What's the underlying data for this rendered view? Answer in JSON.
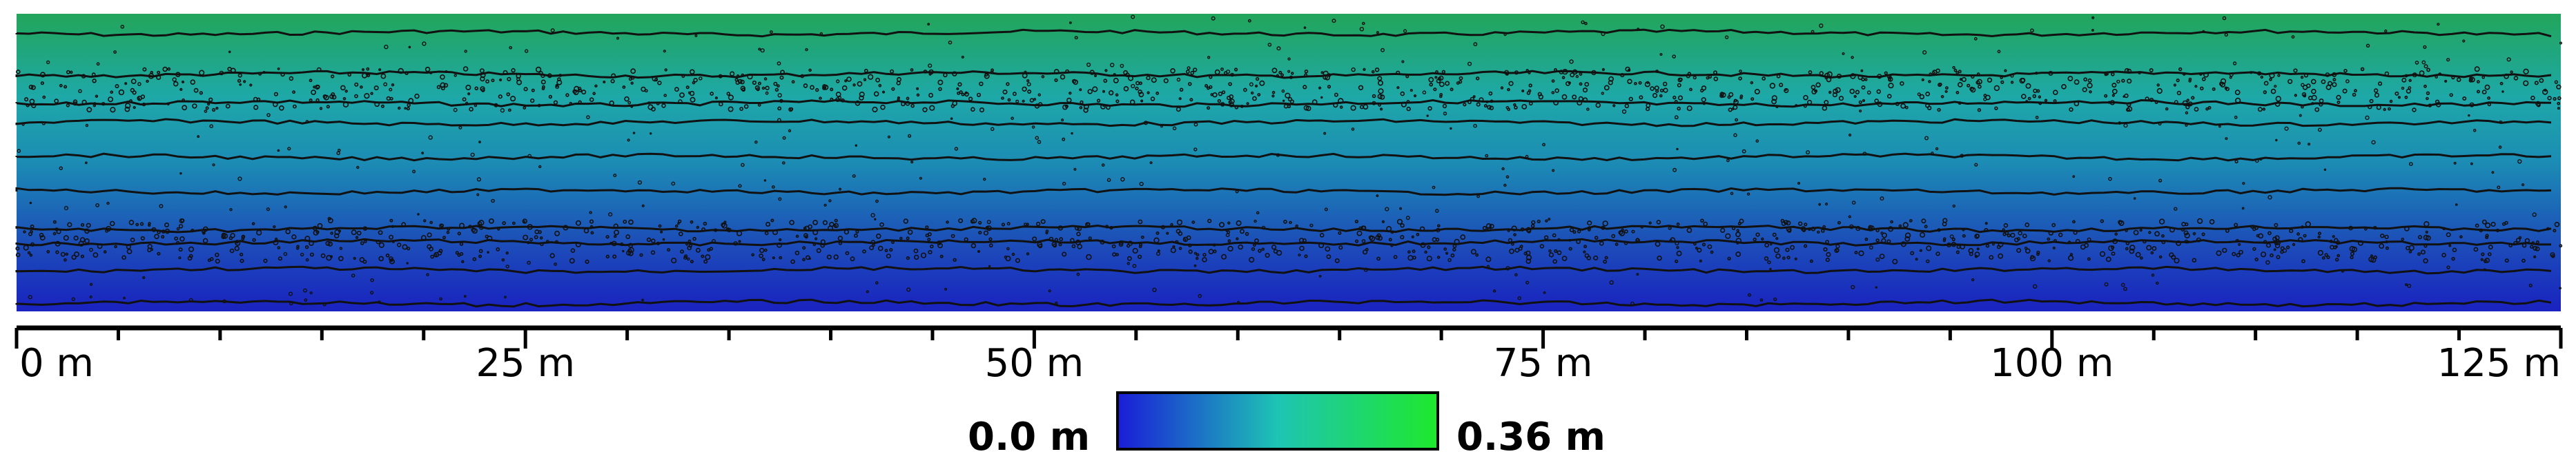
{
  "map": {
    "colors": {
      "low": "#1a1ed8",
      "mid": "#1ec4b4",
      "high": "#1ee82e",
      "top_band": "#21a25e",
      "bottom_band": "#1c34b6",
      "contour": "#111111"
    },
    "contour_count": 10
  },
  "scale_bar": {
    "unit": "m",
    "major_ticks": [
      "0 m",
      "25 m",
      "50 m",
      "75 m",
      "100 m",
      "125 m"
    ],
    "major_values": [
      0,
      25,
      50,
      75,
      100,
      125
    ],
    "minor_step": 5,
    "max_value": 125
  },
  "legend": {
    "min_label": "0.0 m",
    "max_label": "0.36 m",
    "gradient": [
      "#1a1ed8",
      "#1ec4b4",
      "#1ee82e"
    ]
  }
}
